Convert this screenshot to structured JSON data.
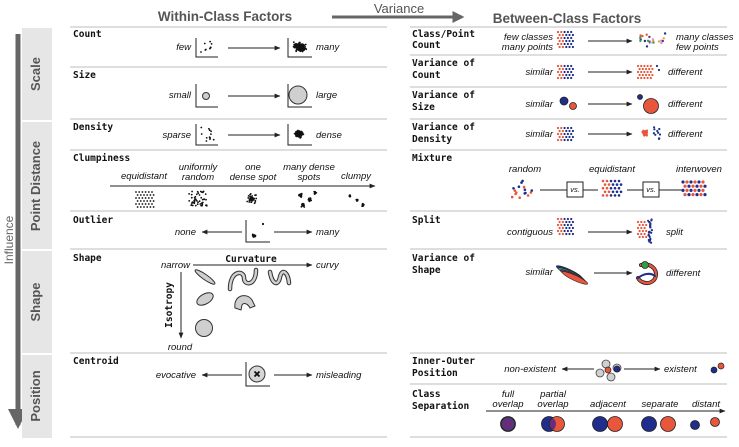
{
  "headers": {
    "within": "Within-Class Factors",
    "variance": "Variance",
    "between": "Between-Class Factors"
  },
  "side": {
    "influence": "Influence"
  },
  "categories": {
    "scale": "Scale",
    "point_distance": "Point Distance",
    "shape": "Shape",
    "position": "Position"
  },
  "within": {
    "count": {
      "title": "Count",
      "low": "few",
      "high": "many"
    },
    "size": {
      "title": "Size",
      "low": "small",
      "high": "large"
    },
    "density": {
      "title": "Density",
      "low": "sparse",
      "high": "dense"
    },
    "clumpiness": {
      "title": "Clumpiness",
      "s1": "equidistant",
      "s2a": "uniformly",
      "s2b": "random",
      "s3a": "one",
      "s3b": "dense spot",
      "s4a": "many dense",
      "s4b": "spots",
      "s5": "clumpy"
    },
    "outlier": {
      "title": "Outlier",
      "low": "none",
      "high": "many"
    },
    "shape": {
      "title": "Shape",
      "narrow": "narrow",
      "curvature": "Curvature",
      "curvy": "curvy",
      "isotropy": "Isotropy",
      "round": "round"
    },
    "centroid": {
      "title": "Centroid",
      "low": "evocative",
      "high": "misleading"
    }
  },
  "between": {
    "class_point_count": {
      "title1": "Class/Point",
      "title2": "Count",
      "l1": "few classes",
      "l2": "many points",
      "r1": "many classes",
      "r2": "few points"
    },
    "variance_count": {
      "title1": "Variance of",
      "title2": "Count",
      "low": "similar",
      "high": "different"
    },
    "variance_size": {
      "title1": "Variance of",
      "title2": "Size",
      "low": "similar",
      "high": "different"
    },
    "variance_density": {
      "title1": "Variance of",
      "title2": "Density",
      "low": "similar",
      "high": "different"
    },
    "mixture": {
      "title": "Mixture",
      "s1": "random",
      "s2": "equidistant",
      "s3": "interwoven",
      "vs": "vs."
    },
    "split": {
      "title": "Split",
      "low": "contiguous",
      "high": "split"
    },
    "variance_shape": {
      "title1": "Variance of",
      "title2": "Shape",
      "low": "similar",
      "high": "different"
    },
    "inner_outer": {
      "title1": "Inner-Outer",
      "title2": "Position",
      "low": "non-existent",
      "high": "existent"
    },
    "class_separation": {
      "title1": "Class",
      "title2": "Separation",
      "s1a": "full",
      "s1b": "overlap",
      "s2a": "partial",
      "s2b": "overlap",
      "s3": "adjacent",
      "s4": "separate",
      "s5": "distant"
    }
  },
  "colors": {
    "orange": "#e8573c",
    "blue": "#1f2e8c",
    "purple": "#6a2c7a",
    "green": "#2e9e4a",
    "gray": "#bdbdbd",
    "header_gray": "#555555"
  }
}
